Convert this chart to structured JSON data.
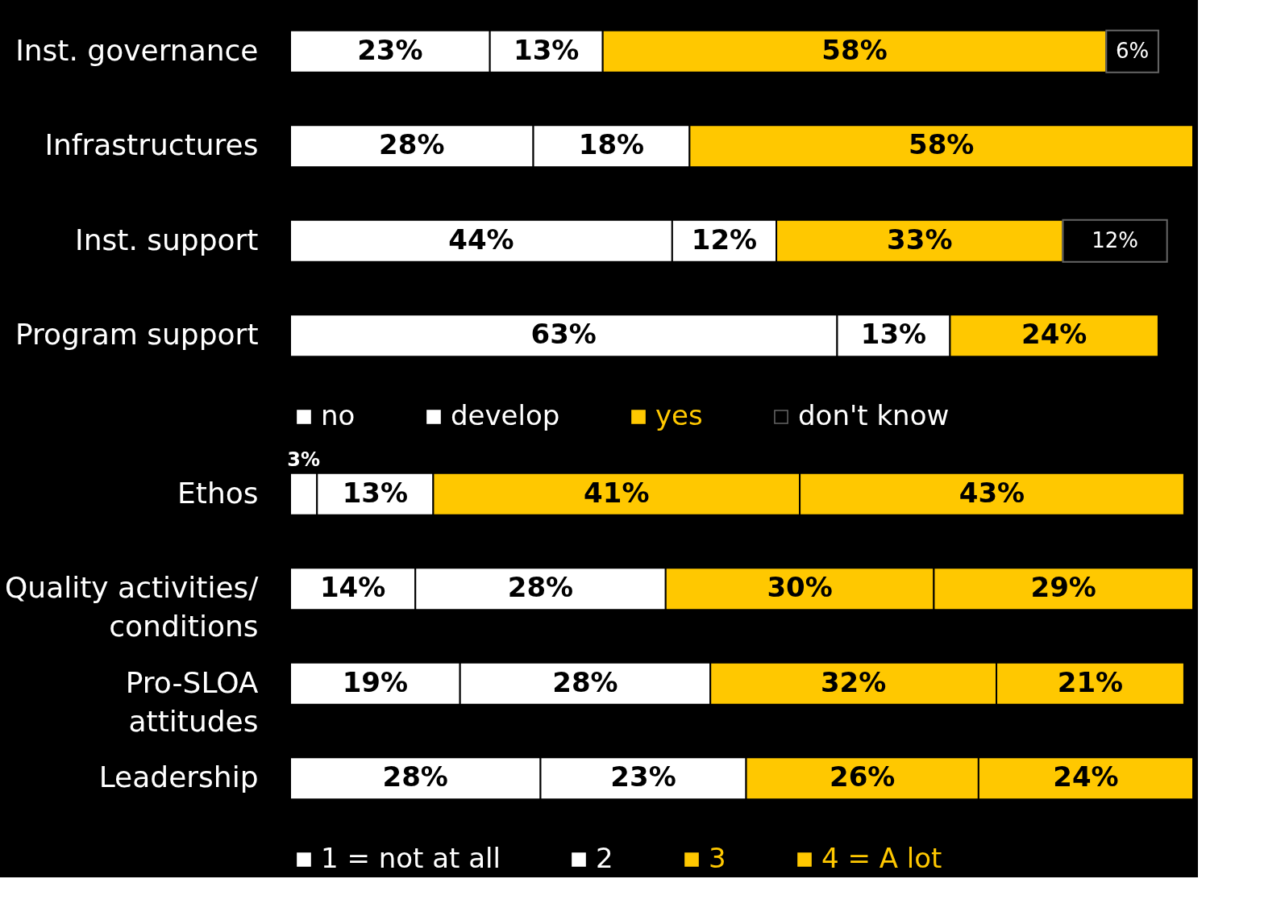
{
  "chart_data": [
    {
      "type": "bar",
      "orientation": "horizontal",
      "stacked": true,
      "legend": "bottom",
      "categories": [
        "Inst. governance",
        "Infrastructures",
        "Inst. support",
        "Program support"
      ],
      "series": [
        {
          "name": "no",
          "color": "#ffffff",
          "values": [
            23,
            28,
            44,
            63
          ],
          "value_labels": [
            "23%",
            "28%",
            "44%",
            "63%"
          ]
        },
        {
          "name": "develop",
          "color": "#ffffff",
          "values": [
            13,
            18,
            12,
            13
          ],
          "value_labels": [
            "13%",
            "18%",
            "12%",
            "13%"
          ]
        },
        {
          "name": "yes",
          "color": "#ffc800",
          "values": [
            58,
            58,
            33,
            24
          ],
          "value_labels": [
            "58%",
            "58%",
            "33%",
            "24%"
          ]
        },
        {
          "name": "don't know",
          "color": "#000000",
          "values": [
            6,
            null,
            12,
            null
          ],
          "value_labels": [
            "6%",
            null,
            "12%",
            null
          ]
        }
      ]
    },
    {
      "type": "bar",
      "orientation": "horizontal",
      "stacked": true,
      "legend": "bottom",
      "categories": [
        "Ethos",
        "Quality activities/\nconditions",
        "Pro-SLOA\nattitudes",
        "Leadership"
      ],
      "series": [
        {
          "name": "1 = not at all",
          "color": "#ffffff",
          "values": [
            3,
            14,
            19,
            28
          ],
          "value_labels": [
            "3%",
            "14%",
            "19%",
            "28%"
          ]
        },
        {
          "name": "2",
          "color": "#ffffff",
          "values": [
            13,
            28,
            28,
            23
          ],
          "value_labels": [
            "13%",
            "28%",
            "28%",
            "23%"
          ]
        },
        {
          "name": "3",
          "color": "#ffc800",
          "values": [
            41,
            30,
            32,
            26
          ],
          "value_labels": [
            "41%",
            "30%",
            "32%",
            "26%"
          ]
        },
        {
          "name": "4 = A lot",
          "color": "#ffc800",
          "values": [
            43,
            29,
            21,
            24
          ],
          "value_labels": [
            "43%",
            "29%",
            "21%",
            "24%"
          ]
        }
      ]
    }
  ]
}
